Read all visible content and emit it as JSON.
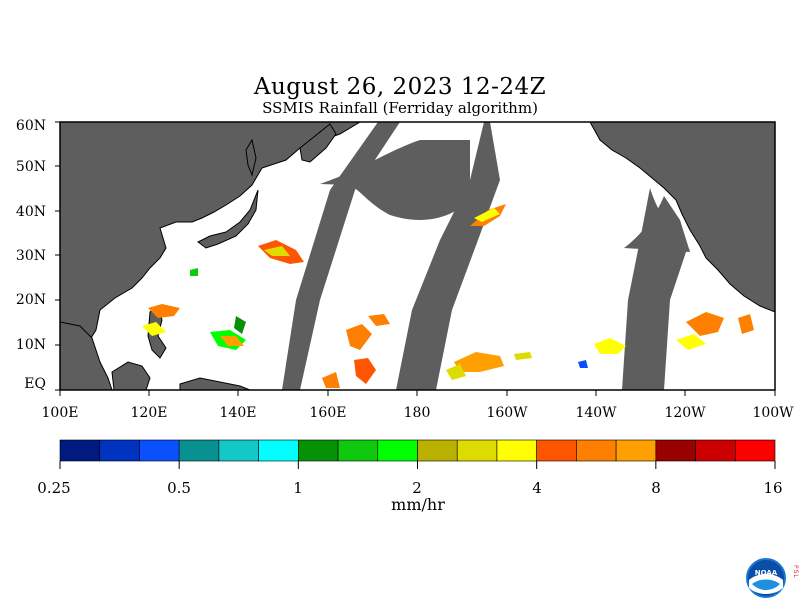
{
  "title": "August 26, 2023 12-24Z",
  "subtitle": "SSMIS Rainfall (Ferriday algorithm)",
  "map": {
    "lat_labels": [
      "60N",
      "50N",
      "40N",
      "30N",
      "20N",
      "10N",
      "EQ"
    ],
    "lon_labels": [
      "100E",
      "120E",
      "140E",
      "160E",
      "180",
      "160W",
      "140W",
      "120W",
      "100W"
    ],
    "land_color": "#5e5e5e",
    "no_data_color": "#5e5e5e",
    "ocean_color": "#ffffff"
  },
  "colorbar": {
    "labels": [
      "0.25",
      "0.5",
      "1",
      "2",
      "4",
      "8",
      "16"
    ],
    "units": "mm/hr",
    "colors": [
      "#001a7f",
      "#0033bf",
      "#0a50ff",
      "#099090",
      "#14c8c8",
      "#00ffff",
      "#079107",
      "#0fc90f",
      "#00ff00",
      "#b9b000",
      "#dcdc00",
      "#ffff00",
      "#ff5500",
      "#ff7f00",
      "#ffa000",
      "#990000",
      "#cc0000",
      "#ff0000"
    ]
  },
  "logo": {
    "text": "NOAA",
    "side_text": "PSL"
  }
}
